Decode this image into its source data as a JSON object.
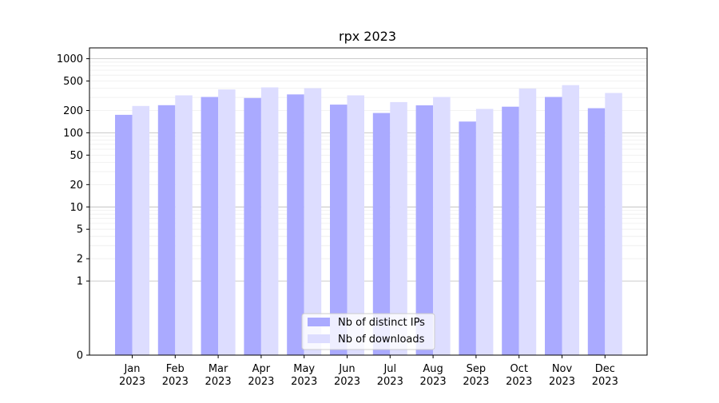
{
  "chart_data": {
    "type": "bar",
    "title": "rpx 2023",
    "xlabel": "",
    "ylabel": "",
    "scale": "symlog",
    "ylim": [
      0,
      1400
    ],
    "grid": true,
    "legend_position": "bottom-center",
    "categories": [
      [
        "Jan",
        "2023"
      ],
      [
        "Feb",
        "2023"
      ],
      [
        "Mar",
        "2023"
      ],
      [
        "Apr",
        "2023"
      ],
      [
        "May",
        "2023"
      ],
      [
        "Jun",
        "2023"
      ],
      [
        "Jul",
        "2023"
      ],
      [
        "Aug",
        "2023"
      ],
      [
        "Sep",
        "2023"
      ],
      [
        "Oct",
        "2023"
      ],
      [
        "Nov",
        "2023"
      ],
      [
        "Dec",
        "2023"
      ]
    ],
    "y_ticks": [
      0,
      1,
      2,
      5,
      10,
      20,
      50,
      100,
      200,
      500,
      1000
    ],
    "series": [
      {
        "name": "Nb of distinct IPs",
        "color": "#aaaaff",
        "values": [
          175,
          236,
          305,
          295,
          330,
          240,
          185,
          235,
          142,
          225,
          305,
          215
        ]
      },
      {
        "name": "Nb of downloads",
        "color": "#ddddff",
        "values": [
          230,
          320,
          385,
          410,
          400,
          320,
          260,
          305,
          210,
          395,
          440,
          345
        ]
      }
    ]
  }
}
